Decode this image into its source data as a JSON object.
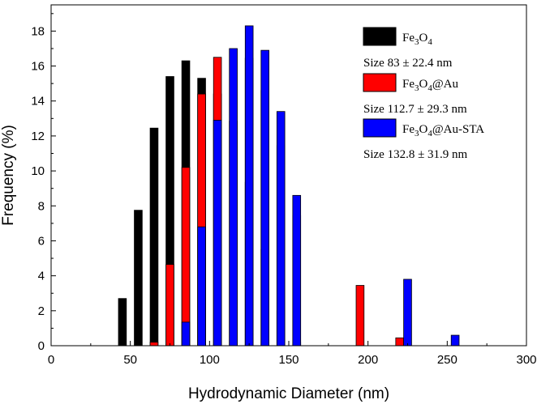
{
  "chart_data": {
    "type": "bar",
    "title": "",
    "xlabel": "Hydrodynamic Diameter (nm)",
    "ylabel": "Frequency (%)",
    "xlim": [
      0,
      300
    ],
    "ylim": [
      0,
      19.5
    ],
    "xticks": [
      0,
      50,
      100,
      150,
      200,
      250,
      300
    ],
    "yticks": [
      0,
      2,
      4,
      6,
      8,
      10,
      12,
      14,
      16,
      18
    ],
    "bar_width": 5,
    "grid": false,
    "legend_position": "top-right",
    "series": [
      {
        "name": "Fe3O4",
        "name_base": "Fe",
        "name_sub1": "3",
        "name_mid": "O",
        "name_sub2": "4",
        "name_suffix": "",
        "size_text": "Size 83 ± 22.4 nm",
        "color": "#000000",
        "x": [
          45,
          55,
          65,
          75,
          85,
          95,
          105,
          115,
          125,
          135,
          145,
          155,
          165
        ],
        "values": [
          2.7,
          7.75,
          12.45,
          15.4,
          16.3,
          15.3,
          14.4,
          12.85,
          9.35,
          5.5,
          2.0,
          0.2,
          0.0
        ]
      },
      {
        "name": "Fe3O4@Au",
        "name_base": "Fe",
        "name_sub1": "3",
        "name_mid": "O",
        "name_sub2": "4",
        "name_suffix": "@Au",
        "size_text": "Size 112.7 ± 29.3 nm",
        "color": "#ff0000",
        "x": [
          65,
          75,
          85,
          95,
          105,
          115,
          125,
          135,
          145,
          155,
          165,
          175,
          195,
          220
        ],
        "values": [
          0.2,
          4.65,
          10.2,
          14.4,
          16.5,
          0.0,
          16.45,
          14.6,
          11.45,
          7.45,
          0.0,
          0.0,
          3.45,
          0.45
        ]
      },
      {
        "name": "Fe3O4@Au-STA",
        "name_base": "Fe",
        "name_sub1": "3",
        "name_mid": "O",
        "name_sub2": "4",
        "name_suffix": "@Au-STA",
        "size_text": "Size 132.8 ± 31.9 nm",
        "color": "#0000ff",
        "x": [
          85,
          95,
          105,
          115,
          125,
          135,
          145,
          155,
          165,
          175,
          195,
          225,
          255
        ],
        "values": [
          1.35,
          6.8,
          12.9,
          17.0,
          18.3,
          16.9,
          13.4,
          8.6,
          0.0,
          0.0,
          0.0,
          3.8,
          0.6
        ]
      }
    ]
  }
}
